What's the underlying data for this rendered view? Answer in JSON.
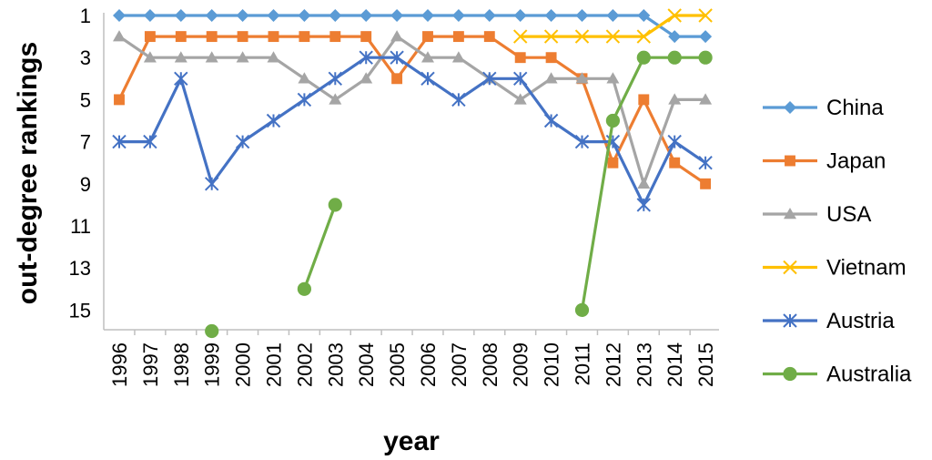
{
  "chart_data": {
    "type": "line",
    "title": "",
    "xlabel": "year",
    "ylabel": "out-degree rankings",
    "y_inverted": true,
    "ylim": [
      1,
      16
    ],
    "yticks": [
      "1",
      "3",
      "5",
      "7",
      "9",
      "11",
      "13",
      "15"
    ],
    "grid": false,
    "legend_position": "right",
    "categories": [
      "1996",
      "1997",
      "1998",
      "1999",
      "2000",
      "2001",
      "2002",
      "2003",
      "2004",
      "2005",
      "2006",
      "2007",
      "2008",
      "2009",
      "2010",
      "2011",
      "2012",
      "2013",
      "2014",
      "2015"
    ],
    "series": [
      {
        "name": "China",
        "color": "#5B9BD5",
        "marker": "diamond",
        "values": [
          1,
          1,
          1,
          1,
          1,
          1,
          1,
          1,
          1,
          1,
          1,
          1,
          1,
          1,
          1,
          1,
          1,
          1,
          2,
          2
        ]
      },
      {
        "name": "Japan",
        "color": "#ED7D31",
        "marker": "square",
        "values": [
          5,
          2,
          2,
          2,
          2,
          2,
          2,
          2,
          2,
          4,
          2,
          2,
          2,
          3,
          3,
          4,
          8,
          5,
          8,
          9
        ]
      },
      {
        "name": "USA",
        "color": "#A5A5A5",
        "marker": "triangle",
        "values": [
          2,
          3,
          3,
          3,
          3,
          3,
          4,
          5,
          4,
          2,
          3,
          3,
          4,
          5,
          4,
          4,
          4,
          9,
          5,
          5
        ]
      },
      {
        "name": "Vietnam",
        "color": "#FFC000",
        "marker": "x",
        "values": [
          null,
          null,
          null,
          null,
          null,
          null,
          null,
          null,
          null,
          null,
          null,
          null,
          null,
          2,
          2,
          2,
          2,
          2,
          1,
          1
        ]
      },
      {
        "name": "Austria",
        "color": "#4472C4",
        "marker": "star",
        "values": [
          7,
          7,
          4,
          9,
          7,
          6,
          5,
          4,
          3,
          3,
          4,
          5,
          4,
          4,
          6,
          7,
          7,
          10,
          7,
          8
        ]
      },
      {
        "name": "Australia",
        "color": "#70AD47",
        "marker": "circle",
        "values": [
          null,
          null,
          null,
          16,
          null,
          null,
          14,
          10,
          null,
          null,
          null,
          null,
          null,
          null,
          null,
          15,
          6,
          3,
          3,
          3
        ]
      }
    ]
  }
}
